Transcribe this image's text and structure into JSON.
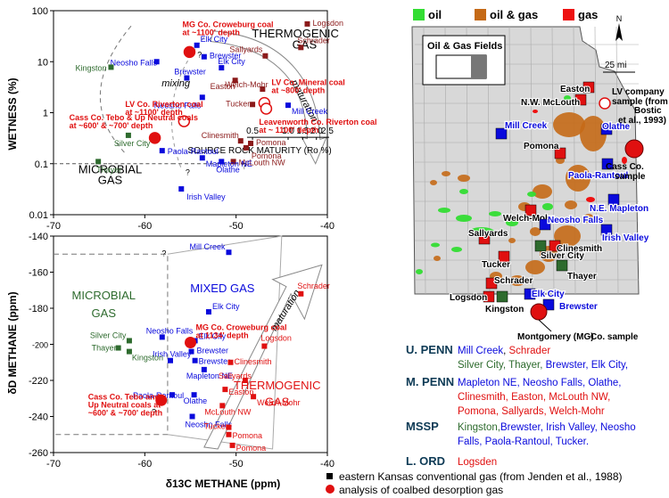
{
  "colors": {
    "blue": "#0a0adc",
    "red": "#e01010",
    "maroon": "#8b1a1a",
    "dkgreen": "#2e6b2e",
    "black": "#000000",
    "oil_green": "#33dd33",
    "oilgas_brown": "#c56a17",
    "gas_red": "#ee1111",
    "map_gray": "#d8d8d8"
  },
  "chart_data": [
    {
      "type": "scatter",
      "xlabel": "",
      "ylabel": "WETNESS (%)",
      "xlim": [
        -70,
        -40
      ],
      "ylim": [
        0.01,
        100
      ],
      "yscale": "log",
      "xticks": [
        -70,
        -60,
        -50,
        -40
      ],
      "xtick_labels": [
        "-70",
        "-60",
        "-50",
        "-40"
      ],
      "yticks": [
        0.01,
        0.1,
        1,
        10,
        100
      ],
      "ytick_labels": [
        "0.01",
        "0.1",
        "1",
        "10",
        "100"
      ],
      "maturity_scale": {
        "label": "SOURCE ROCK MATURITY (Ro %)",
        "ticks": [
          {
            "label": "0.5",
            "x": -48.2
          },
          {
            "label": "1.0",
            "x": -44.3
          },
          {
            "label": "1.5",
            "x": -42.7
          },
          {
            "label": "2.0",
            "x": -41.2
          },
          {
            "label": "2.5",
            "x": -40.0
          }
        ]
      },
      "region_labels": [
        {
          "text": "THERMOGENIC",
          "x": -43.5,
          "y": 30
        },
        {
          "text": "GAS",
          "x": -42.5,
          "y": 18
        },
        {
          "text": "MICROBIAL",
          "x": -63.8,
          "y": 0.065
        },
        {
          "text": "GAS",
          "x": -63.8,
          "y": 0.04
        },
        {
          "text": "mixing",
          "x": -56.6,
          "y": 3.3
        },
        {
          "text": "maturation",
          "x": -42.8,
          "y": 1.6
        }
      ],
      "question_marks": [
        {
          "x": -54.0,
          "y": 12
        },
        {
          "x": -55.3,
          "y": 0.06
        },
        {
          "x": -49.1,
          "y": 0.08
        }
      ],
      "points": [
        {
          "label": "Logsdon",
          "x": -42.2,
          "y": 55,
          "color": "maroon"
        },
        {
          "label": "Schrader",
          "x": -42.9,
          "y": 19,
          "color": "maroon"
        },
        {
          "label": "Sallyards",
          "x": -46.8,
          "y": 13,
          "color": "maroon"
        },
        {
          "label": "Easton",
          "x": -50.1,
          "y": 4.3,
          "color": "maroon"
        },
        {
          "label": "Welch-Mohr",
          "x": -47.1,
          "y": 2.9,
          "color": "maroon"
        },
        {
          "label": "Tucker",
          "x": -48.2,
          "y": 1.45,
          "color": "maroon"
        },
        {
          "label": "Clinesmith",
          "x": -49.5,
          "y": 0.28,
          "color": "maroon"
        },
        {
          "label": "Pomona",
          "x": -48.4,
          "y": 0.25,
          "color": "maroon"
        },
        {
          "label": "Pomona",
          "x": -48.9,
          "y": 0.205,
          "color": "maroon"
        },
        {
          "label": "McLouth NW",
          "x": -50.3,
          "y": 0.11,
          "color": "maroon"
        },
        {
          "label": "Elk City",
          "x": -54.3,
          "y": 21,
          "color": "blue"
        },
        {
          "label": "Brewster",
          "x": -53.5,
          "y": 12.5,
          "color": "blue"
        },
        {
          "label": "Elk City",
          "x": -51.6,
          "y": 7.6,
          "color": "blue"
        },
        {
          "label": "Neosho Falls",
          "x": -58.7,
          "y": 10,
          "color": "blue"
        },
        {
          "label": "Brewster",
          "x": -55.4,
          "y": 4.8,
          "color": "blue"
        },
        {
          "label": "Neosho Falls",
          "x": -53.7,
          "y": 2.0,
          "color": "blue"
        },
        {
          "label": "Mill Creek",
          "x": -44.3,
          "y": 1.4,
          "color": "blue"
        },
        {
          "label": "Paola-Rantoul",
          "x": -58.1,
          "y": 0.18,
          "color": "blue"
        },
        {
          "label": "Mapleton NE",
          "x": -53.7,
          "y": 0.13,
          "color": "blue"
        },
        {
          "label": "Olathe",
          "x": -51.6,
          "y": 0.11,
          "color": "blue"
        },
        {
          "label": "Irish Valley",
          "x": -56.0,
          "y": 0.032,
          "color": "blue"
        },
        {
          "label": "Kingston",
          "x": -63.7,
          "y": 7.8,
          "color": "dkgreen"
        },
        {
          "label": "Silver City",
          "x": -61.8,
          "y": 0.36,
          "color": "dkgreen"
        },
        {
          "label": "Thayer",
          "x": -65.1,
          "y": 0.11,
          "color": "dkgreen"
        }
      ],
      "coal_samples": [
        {
          "label": "MG Co. Croweburg coal\nat ~1100' depth",
          "x": -55.1,
          "y": 15.5,
          "filled": true
        },
        {
          "label": "LV Co. Riverton coal\nat ~1100' depth",
          "x": -55.7,
          "y": 0.68,
          "filled": false
        },
        {
          "label": "Cass Co. Tebo & Up Neutral coals\nat ~600' & ~700' depth",
          "x": -58.9,
          "y": 0.32,
          "filled": true
        },
        {
          "label": "LV Co. Mineral coal\nat ~800' depth",
          "x": -46.9,
          "y": 1.55,
          "filled": false
        },
        {
          "label": "Leavenworth Co. Riverton coal\nat ~ 1100' depth",
          "x": -46.7,
          "y": 1.2,
          "filled": false
        }
      ]
    },
    {
      "type": "scatter",
      "xlabel": "δ13C METHANE (ppm)",
      "ylabel": "δD METHANE (ppm)",
      "xlim": [
        -70,
        -40
      ],
      "ylim": [
        -260,
        -140
      ],
      "xticks": [
        -70,
        -60,
        -50,
        -40
      ],
      "xtick_labels": [
        "-70",
        "-60",
        "-50",
        "-40"
      ],
      "yticks": [
        -260,
        -240,
        -220,
        -200,
        -180,
        -160,
        -140
      ],
      "ytick_labels": [
        "-260",
        "-240",
        "-220",
        "-200",
        "-180",
        "-160",
        "-140"
      ],
      "region_labels": [
        {
          "text": "MICROBIAL",
          "x": -64.5,
          "y": -175,
          "color": "dkgreen"
        },
        {
          "text": "GAS",
          "x": -64.5,
          "y": -185,
          "color": "dkgreen"
        },
        {
          "text": "MIXED GAS",
          "x": -51.5,
          "y": -171,
          "color": "blue"
        },
        {
          "text": "THERMOGENIC",
          "x": -45.5,
          "y": -225,
          "color": "red"
        },
        {
          "text": "GAS",
          "x": -45.5,
          "y": -234,
          "color": "red"
        },
        {
          "text": "maturation",
          "x": -44.3,
          "y": -182,
          "color": "black"
        }
      ],
      "question_marks": [
        {
          "x": -57.9,
          "y": -151
        },
        {
          "x": -59.0,
          "y": -239
        }
      ],
      "points": [
        {
          "label": "Mill Creek",
          "x": -50.8,
          "y": -149,
          "color": "blue"
        },
        {
          "label": "Elk City",
          "x": -53.0,
          "y": -182,
          "color": "blue"
        },
        {
          "label": "Neosho Falls",
          "x": -58.1,
          "y": -196,
          "color": "blue"
        },
        {
          "label": "Elk City",
          "x": -54.5,
          "y": -198,
          "color": "blue"
        },
        {
          "label": "Brewster",
          "x": -54.9,
          "y": -204,
          "color": "blue"
        },
        {
          "label": "Irish Valley",
          "x": -57.2,
          "y": -209,
          "color": "blue"
        },
        {
          "label": "Brewster",
          "x": -54.5,
          "y": -209,
          "color": "blue"
        },
        {
          "label": "Mapleton NE",
          "x": -53.5,
          "y": -214,
          "color": "blue"
        },
        {
          "label": "Paola-Rantoul",
          "x": -57.0,
          "y": -228,
          "color": "blue"
        },
        {
          "label": "Olathe",
          "x": -54.6,
          "y": -228,
          "color": "blue"
        },
        {
          "label": "Neosho Falls",
          "x": -54.8,
          "y": -240,
          "color": "blue"
        },
        {
          "label": "Schrader",
          "x": -42.9,
          "y": -172,
          "color": "red"
        },
        {
          "label": "Logsdon",
          "x": -46.9,
          "y": -201,
          "color": "red"
        },
        {
          "label": "Clinesmith",
          "x": -50.6,
          "y": -210,
          "color": "red"
        },
        {
          "label": "Sallyards",
          "x": -49.0,
          "y": -220,
          "color": "red"
        },
        {
          "label": "Easton",
          "x": -51.2,
          "y": -225,
          "color": "red"
        },
        {
          "label": "Welch-Mohr",
          "x": -48.1,
          "y": -229,
          "color": "red"
        },
        {
          "label": "McLouth NW",
          "x": -51.5,
          "y": -234,
          "color": "red"
        },
        {
          "label": "Tucker",
          "x": -50.8,
          "y": -246,
          "color": "red"
        },
        {
          "label": "Pomona",
          "x": -50.8,
          "y": -250,
          "color": "red"
        },
        {
          "label": "Pomona",
          "x": -50.4,
          "y": -256,
          "color": "red"
        },
        {
          "label": "Silver City",
          "x": -61.7,
          "y": -198,
          "color": "dkgreen"
        },
        {
          "label": "Thayer",
          "x": -62.9,
          "y": -202,
          "color": "dkgreen"
        },
        {
          "label": "Kingston",
          "x": -61.7,
          "y": -204,
          "color": "dkgreen"
        }
      ],
      "coal_samples": [
        {
          "label": "MG Co. Croweburg coal\nat 1134' depth",
          "x": -55.0,
          "y": -199,
          "filled": true
        },
        {
          "label": "Cass Co. Tebo and\nUp Neutral coals at\n~600' & ~700' depth",
          "x": -58.2,
          "y": -231,
          "filled": true
        }
      ]
    }
  ],
  "map": {
    "legend": [
      {
        "label": "oil",
        "color": "oil_green"
      },
      {
        "label": "oil & gas",
        "color": "oilgas_brown"
      },
      {
        "label": "gas",
        "color": "gas_red"
      }
    ],
    "inset_title": "Oil & Gas Fields",
    "north_label": "N",
    "scale_label": "25 mi",
    "field_labels": [
      {
        "text": "Easton",
        "color": "black"
      },
      {
        "text": "N.W. McLouth",
        "color": "black"
      },
      {
        "text": "Mill Creek",
        "color": "blue"
      },
      {
        "text": "Olathe",
        "color": "blue"
      },
      {
        "text": "Pomona",
        "color": "black"
      },
      {
        "text": "Paola-Rantoul",
        "color": "blue"
      },
      {
        "text": "Welch-Mohr",
        "color": "black"
      },
      {
        "text": "N.E. Mapleton",
        "color": "blue"
      },
      {
        "text": "Neosho Falls",
        "color": "blue"
      },
      {
        "text": "Irish Valley",
        "color": "blue"
      },
      {
        "text": "Sallyards",
        "color": "black"
      },
      {
        "text": "Clinesmith",
        "color": "black"
      },
      {
        "text": "Silver City",
        "color": "black"
      },
      {
        "text": "Tucker",
        "color": "black"
      },
      {
        "text": "Thayer",
        "color": "black"
      },
      {
        "text": "Schrader",
        "color": "black"
      },
      {
        "text": "Logsdon",
        "color": "black"
      },
      {
        "text": "Elk City",
        "color": "blue"
      },
      {
        "text": "Kingston",
        "color": "black"
      },
      {
        "text": "Brewster",
        "color": "blue"
      },
      {
        "text": "Montgomery (MG)",
        "color": "black"
      },
      {
        "text": "Co. sample",
        "color": "black"
      },
      {
        "text": "Cass Co.",
        "color": "black"
      },
      {
        "text": "sample",
        "color": "black"
      }
    ],
    "lv_note": [
      "LV company",
      "sample (from",
      "Bostic",
      "et al., 1993)"
    ]
  },
  "ages": [
    {
      "age": "U. PENN",
      "parts": [
        {
          "text": "Mill Creek",
          "color": "blue"
        },
        {
          "text": ", ",
          "color": "black"
        },
        {
          "text": "Schrader",
          "color": "red"
        }
      ],
      "parts2": [
        {
          "text": "Silver City, Thayer, ",
          "color": "dkgreen"
        },
        {
          "text": "Brewster, Elk City,",
          "color": "blue"
        }
      ]
    },
    {
      "age": "M. PENN",
      "parts": [
        {
          "text": "Mapleton NE, Neosho Falls, Olathe,",
          "color": "blue"
        }
      ],
      "parts2": [
        {
          "text": "Clinesmith, Easton, McLouth NW,",
          "color": "red"
        }
      ],
      "parts3": [
        {
          "text": "Pomona, Sallyards, Welch-Mohr",
          "color": "red"
        }
      ]
    },
    {
      "age": "MSSP",
      "parts": [
        {
          "text": "Kingston,",
          "color": "dkgreen"
        },
        {
          "text": "Brewster, Irish Valley, Neosho",
          "color": "blue"
        }
      ],
      "parts2": [
        {
          "text": "Falls, Paola-Rantoul, Tucker.",
          "color": "blue"
        }
      ]
    },
    {
      "age": "L. ORD",
      "parts": [
        {
          "text": "Logsden",
          "color": "red"
        }
      ]
    }
  ],
  "legend_bottom": [
    {
      "text": "eastern Kansas conventional gas (from Jenden et al., 1988)",
      "marker": "square"
    },
    {
      "text": "analysis of coalbed desorption gas",
      "marker": "circle"
    }
  ]
}
